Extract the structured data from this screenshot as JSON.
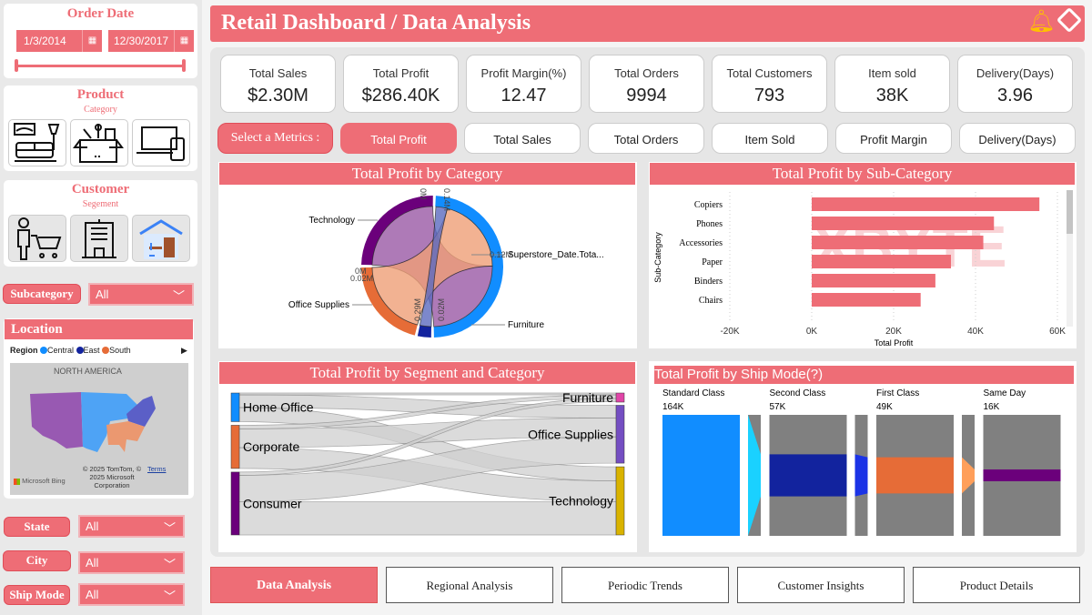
{
  "header": {
    "title": "Retail Dashboard / Data Analysis",
    "icons": [
      "bell-icon",
      "eraser-icon"
    ]
  },
  "filters": {
    "order_date": {
      "title": "Order Date",
      "start": "1/3/2014",
      "end": "12/30/2017"
    },
    "product": {
      "title": "Product",
      "subtitle": "Category",
      "icons": [
        "furniture-icon",
        "office-supplies-icon",
        "technology-icon"
      ]
    },
    "customer": {
      "title": "Customer",
      "subtitle": "Segement",
      "icons": [
        "consumer-icon",
        "corporate-icon",
        "home-office-icon"
      ]
    },
    "subcategory": {
      "label": "Subcategory",
      "value": "All"
    },
    "state": {
      "label": "State",
      "value": "All"
    },
    "city": {
      "label": "City",
      "value": "All"
    },
    "ship_mode": {
      "label": "Ship Mode",
      "value": "All"
    }
  },
  "location": {
    "title": "Location",
    "legend_title": "Region",
    "legend": [
      {
        "name": "Central",
        "color": "#118dff"
      },
      {
        "name": "East",
        "color": "#12239e"
      },
      {
        "name": "South",
        "color": "#e66c37"
      }
    ],
    "map_label": "NORTH AMERICA",
    "copyright": "© 2025 TomTom, © 2025 Microsoft Corporation",
    "terms": "Terms",
    "bing": "Microsoft Bing"
  },
  "kpis": [
    {
      "label": "Total Sales",
      "value": "$2.30M"
    },
    {
      "label": "Total Profit",
      "value": "$286.40K"
    },
    {
      "label": "Profit Margin(%)",
      "value": "12.47"
    },
    {
      "label": "Total Orders",
      "value": "9994"
    },
    {
      "label": "Total Customers",
      "value": "793"
    },
    {
      "label": "Item sold",
      "value": "38K"
    },
    {
      "label": "Delivery(Days)",
      "value": "3.96"
    }
  ],
  "metrics": {
    "label": "Select a Metrics :",
    "selected": "Total Profit",
    "options": [
      "Total Profit",
      "Total Sales",
      "Total Orders",
      "Item Sold",
      "Profit Margin",
      "Delivery(Days)"
    ]
  },
  "tabs": [
    {
      "label": "Data Analysis",
      "active": true
    },
    {
      "label": "Regional Analysis"
    },
    {
      "label": "Periodic Trends"
    },
    {
      "label": "Customer Insights"
    },
    {
      "label": "Product Details"
    }
  ],
  "chart_data": [
    {
      "type": "chord",
      "title": "Total Profit by Category",
      "nodes": [
        {
          "name": "Technology",
          "value": 145,
          "color": "#6b007b"
        },
        {
          "name": "Office Supplies",
          "value": 122,
          "color": "#e66c37"
        },
        {
          "name": "Furniture",
          "value": 18,
          "color": "#12239e"
        },
        {
          "name": "Superstore_Date.Tota...",
          "value": 286,
          "color": "#118dff"
        }
      ],
      "tick_labels": [
        "0M",
        "0.14M",
        "0.12M",
        "0M",
        "0.02M",
        "0.29M",
        "0.02M",
        "0M"
      ]
    },
    {
      "type": "bar",
      "orientation": "horizontal",
      "title": "Total Profit by Sub-Category",
      "xlabel": "Total Profit",
      "ylabel": "Sub-Category",
      "categories": [
        "Copiers",
        "Phones",
        "Accessories",
        "Paper",
        "Binders",
        "Chairs"
      ],
      "values": [
        55600,
        44500,
        41900,
        34000,
        30200,
        26600
      ],
      "xlim": [
        -20000,
        60000
      ],
      "xticks": [
        "-20K",
        "0K",
        "20K",
        "40K",
        "60K"
      ],
      "tick_values": [
        -20000,
        0,
        20000,
        40000,
        60000
      ],
      "color": "#ee6d76",
      "grid": true,
      "watermark": "XBYTE DATA ANALYTICS"
    },
    {
      "type": "sankey",
      "title": "Total Profit by Segment and Category",
      "sources": [
        {
          "name": "Home Office",
          "color": "#118dff"
        },
        {
          "name": "Corporate",
          "color": "#e66c37"
        },
        {
          "name": "Consumer",
          "color": "#6b007b"
        }
      ],
      "targets": [
        {
          "name": "Furniture",
          "color": "#e044a7"
        },
        {
          "name": "Office Supplies",
          "color": "#744ec2"
        },
        {
          "name": "Technology",
          "color": "#d9b300"
        }
      ],
      "flows": [
        [
          3.9,
          27.0,
          30.0
        ],
        [
          7.6,
          40.0,
          44.2
        ],
        [
          6.9,
          56.0,
          70.8
        ]
      ]
    },
    {
      "type": "funnel",
      "title": "Total Profit by Ship Mode(?)",
      "categories": [
        "Standard Class",
        "Second Class",
        "First Class",
        "Same Day"
      ],
      "values": [
        164,
        57,
        49,
        16
      ],
      "labels": [
        "164K",
        "57K",
        "49K",
        "16K"
      ],
      "colors": [
        "#118dff",
        "#12239e",
        "#e66c37",
        "#6b007b"
      ],
      "connector_colors": [
        "#1ad1ff",
        "#1b33e6",
        "#ff9f5a"
      ]
    }
  ]
}
